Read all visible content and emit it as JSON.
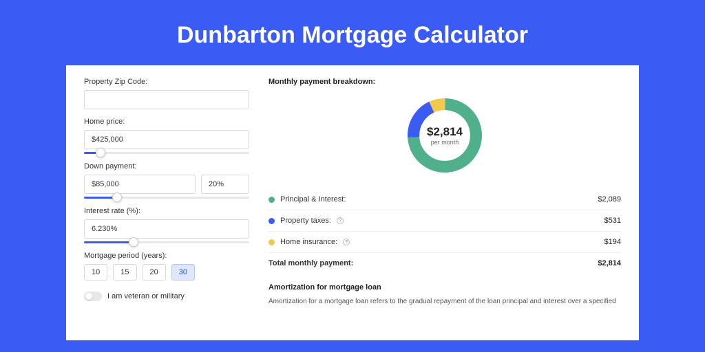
{
  "page": {
    "title": "Dunbarton Mortgage Calculator",
    "background_color": "#3a5cf4",
    "card_shadow_color": "#2c4fd8",
    "card_background": "#ffffff"
  },
  "form": {
    "zip": {
      "label": "Property Zip Code:",
      "value": ""
    },
    "home_price": {
      "label": "Home price:",
      "value": "$425,000",
      "slider_fill_pct": 10
    },
    "down_payment": {
      "label": "Down payment:",
      "amount": "$85,000",
      "percent": "20%",
      "slider_fill_pct": 20
    },
    "interest_rate": {
      "label": "Interest rate (%):",
      "value": "6.230%",
      "slider_fill_pct": 30
    },
    "period": {
      "label": "Mortgage period (years):",
      "options": [
        "10",
        "15",
        "20",
        "30"
      ],
      "active": "30"
    },
    "veteran": {
      "label": "I am veteran or military",
      "checked": false
    }
  },
  "breakdown": {
    "title": "Monthly payment breakdown:",
    "center_amount": "$2,814",
    "center_sub": "per month",
    "items": [
      {
        "label": "Principal & Interest:",
        "value": "$2,089",
        "color": "#4fb08b",
        "info": false,
        "pct": 74
      },
      {
        "label": "Property taxes:",
        "value": "$531",
        "color": "#3a5cf4",
        "info": true,
        "pct": 19
      },
      {
        "label": "Home insurance:",
        "value": "$194",
        "color": "#f2c94c",
        "info": true,
        "pct": 7
      }
    ],
    "total": {
      "label": "Total monthly payment:",
      "value": "$2,814"
    },
    "donut_stroke_width": 18
  },
  "amort": {
    "title": "Amortization for mortgage loan",
    "text": "Amortization for a mortgage loan refers to the gradual repayment of the loan principal and interest over a specified"
  }
}
